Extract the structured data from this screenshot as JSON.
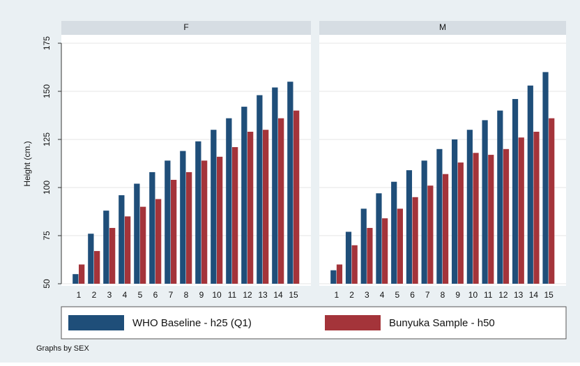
{
  "chart_data": {
    "type": "bar",
    "y_label": "Height (cm.)",
    "ylim": [
      50,
      175
    ],
    "yticks": [
      50,
      75,
      100,
      125,
      150,
      175
    ],
    "categories": [
      "1",
      "2",
      "3",
      "4",
      "5",
      "6",
      "7",
      "8",
      "9",
      "10",
      "11",
      "12",
      "13",
      "14",
      "15"
    ],
    "series": [
      {
        "name": "WHO Baseline - h25 (Q1)",
        "color": "#1f4e79"
      },
      {
        "name": "Bunyuka Sample - h50",
        "color": "#a4343a"
      }
    ],
    "panels": [
      {
        "title": "F",
        "values": [
          [
            55,
            76,
            88,
            96,
            102,
            108,
            114,
            119,
            124,
            130,
            136,
            142,
            148,
            152,
            155
          ],
          [
            60,
            67,
            79,
            85,
            90,
            94,
            104,
            108,
            114,
            116,
            121,
            129,
            130,
            136,
            140
          ]
        ]
      },
      {
        "title": "M",
        "values": [
          [
            57,
            77,
            89,
            97,
            103,
            109,
            114,
            120,
            125,
            130,
            135,
            140,
            146,
            153,
            160
          ],
          [
            60,
            70,
            79,
            84,
            89,
            95,
            101,
            107,
            113,
            118,
            117,
            120,
            126,
            129,
            136
          ]
        ]
      }
    ],
    "note": "Graphs by SEX"
  }
}
